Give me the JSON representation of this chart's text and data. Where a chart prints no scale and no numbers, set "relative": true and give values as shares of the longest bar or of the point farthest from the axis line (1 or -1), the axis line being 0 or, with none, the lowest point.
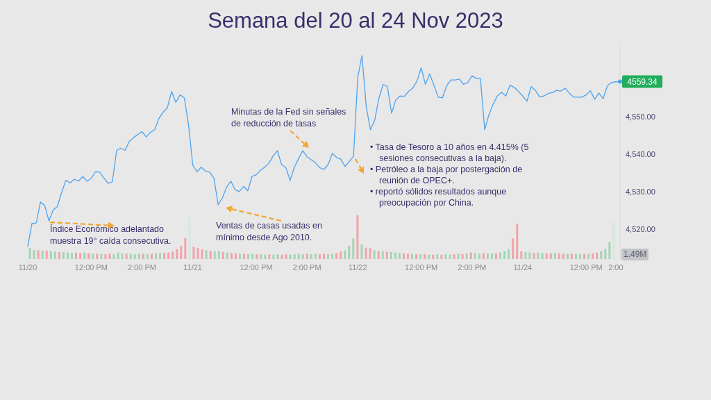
{
  "chart_data": [
    {
      "type": "line",
      "title": "Semana del 20 al 24 Nov 2023",
      "categories": [
        "11/20",
        null,
        null,
        null,
        null,
        null,
        null,
        null,
        null,
        null,
        null,
        null,
        null,
        null,
        null,
        "12:00 PM",
        null,
        null,
        null,
        null,
        null,
        null,
        null,
        null,
        null,
        null,
        null,
        "2:00 PM",
        null,
        null,
        null,
        null,
        null,
        null,
        null,
        null,
        null,
        null,
        null,
        "11/21",
        null,
        null,
        null,
        null,
        null,
        null,
        null,
        null,
        null,
        null,
        null,
        null,
        null,
        null,
        "12:00 PM",
        null,
        null,
        null,
        null,
        null,
        null,
        null,
        null,
        null,
        null,
        null,
        "2:00 PM",
        null,
        null,
        null,
        null,
        null,
        null,
        null,
        null,
        null,
        null,
        null,
        "11/22",
        null,
        null,
        null,
        null,
        null,
        null,
        null,
        null,
        null,
        null,
        null,
        null,
        null,
        null,
        "12:00 PM",
        null,
        null,
        null,
        null,
        null,
        null,
        null,
        null,
        null,
        null,
        null,
        "2:00 PM",
        null,
        null,
        null,
        null,
        null,
        null,
        null,
        null,
        null,
        null,
        null,
        "11/24",
        null,
        null,
        null,
        null,
        null,
        null,
        null,
        null,
        null,
        null,
        null,
        null,
        null,
        null,
        "12:00 PM",
        null,
        null,
        null,
        null,
        null,
        null,
        "2:00",
        null
      ],
      "series": [
        {
          "color": "#4fa3ef",
          "values": [
            4515.4,
            4521.5,
            4521.6,
            4527.2,
            4526.3,
            4522.2,
            4525.1,
            4526.0,
            4529.8,
            4533.0,
            4532.3,
            4533.3,
            4532.8,
            4534.0,
            4532.8,
            4533.5,
            4535.3,
            4535.2,
            4533.6,
            4532.2,
            4532.6,
            4541.0,
            4541.6,
            4541.0,
            4543.4,
            4544.4,
            4545.2,
            4546.0,
            4544.6,
            4545.8,
            4546.5,
            4549.5,
            4551.2,
            4552.4,
            4556.7,
            4553.8,
            4555.8,
            4555.0,
            4547.8,
            4537.1,
            4535.3,
            4536.5,
            4535.5,
            4535.2,
            4533.6,
            4526.5,
            4528.3,
            4531.2,
            4532.8,
            4530.5,
            4530.0,
            4531.4,
            4530.2,
            4534.0,
            4534.5,
            4535.7,
            4536.5,
            4537.6,
            4539.5,
            4540.9,
            4537.2,
            4536.4,
            4533.0,
            4536.4,
            4538.8,
            4540.9,
            4539.3,
            4538.5,
            4537.7,
            4536.4,
            4535.9,
            4537.2,
            4540.2,
            4539.1,
            4538.6,
            4536.7,
            4538.0,
            4539.4,
            4560.5,
            4566.3,
            4552.7,
            4546.5,
            4549.0,
            4554.9,
            4558.6,
            4558.0,
            4550.9,
            4554.5,
            4555.5,
            4555.4,
            4556.7,
            4557.6,
            4559.5,
            4563.0,
            4558.6,
            4561.4,
            4558.4,
            4555.2,
            4555.0,
            4558.2,
            4559.8,
            4559.8,
            4560.0,
            4558.6,
            4559.1,
            4560.9,
            4560.2,
            4560.2,
            4546.5,
            4550.5,
            4553.3,
            4555.5,
            4556.5,
            4555.5,
            4558.4,
            4557.8,
            4556.7,
            4555.5,
            4554.1,
            4558.0,
            4557.0,
            4555.3,
            4555.5,
            4556.2,
            4556.4,
            4557.0,
            4556.8,
            4557.6,
            4556.3,
            4555.2,
            4555.2,
            4555.2,
            4555.8,
            4556.9,
            4554.6,
            4556.3,
            4554.8,
            4558.2,
            4559.1,
            4559.3,
            4559.34
          ],
          "value_labels": [
            null,
            null,
            null,
            null,
            null,
            null,
            null,
            null,
            null,
            null,
            null,
            null,
            null,
            null,
            null,
            null,
            null,
            null,
            null,
            null,
            null,
            null,
            null,
            null,
            null,
            null,
            null,
            null,
            null,
            null,
            null,
            null,
            null,
            null,
            null,
            null,
            null,
            null,
            null,
            null,
            null,
            null,
            null,
            null,
            null,
            null,
            null,
            null,
            null,
            null,
            null,
            null,
            null,
            null,
            null,
            null,
            null,
            null,
            null,
            null,
            null,
            null,
            null,
            null,
            null,
            null,
            null,
            null,
            null,
            null,
            null,
            null,
            null,
            null,
            null,
            null,
            null,
            null,
            null,
            null,
            null,
            null,
            null,
            null,
            null,
            null,
            null,
            null,
            null,
            null,
            null,
            null,
            null,
            null,
            null,
            null,
            null,
            null,
            null,
            null,
            null,
            null,
            null,
            null,
            null,
            null,
            null,
            null,
            null,
            null,
            null,
            null,
            null,
            null,
            null,
            null,
            null,
            null,
            null,
            null,
            null,
            null,
            null,
            null,
            null,
            null,
            null,
            null,
            null,
            null,
            null,
            null,
            null,
            null,
            null,
            null,
            null,
            null,
            null,
            null,
            "4559.34"
          ]
        }
      ],
      "ylim": [
        4512,
        4570
      ],
      "yticks": [
        {
          "value": 4520,
          "label": "4,520.00"
        },
        {
          "value": 4530,
          "label": "4,530.00"
        },
        {
          "value": 4540,
          "label": "4,540.00"
        },
        {
          "value": 4550,
          "label": "4,550.00"
        }
      ],
      "annotations": [
        "Índice Económico adelantado muestra 19° caída consecutiva.",
        "Ventas de casas usadas en mínimo desde Ago 2010.",
        "Minutas de la Fed sin señales de reducción de tasas",
        "• Tasa de Tesoro a 10 años en 4.415% (5 sesiones consecutivas a la baja).",
        "• Petróleo a la baja por postergación de reunión de OPEC+.",
        "• reportó sólidos resultados aunque preocupación por China."
      ]
    },
    {
      "type": "bar",
      "relative": true,
      "tick_labels": false,
      "categories": [
        null,
        null,
        null,
        null,
        null,
        null,
        null,
        null,
        null,
        null,
        null,
        null,
        null,
        null,
        null,
        null,
        null,
        null,
        null,
        null,
        null,
        null,
        null,
        null,
        null,
        null,
        null,
        null,
        null,
        null,
        null,
        null,
        null,
        null,
        null,
        null,
        null,
        null,
        null,
        null,
        null,
        null,
        null,
        null,
        null,
        null,
        null,
        null,
        null,
        null,
        null,
        null,
        null,
        null,
        null,
        null,
        null,
        null,
        null,
        null,
        null,
        null,
        null,
        null,
        null,
        null,
        null,
        null,
        null,
        null,
        null,
        null,
        null,
        null,
        null,
        null,
        null,
        null,
        null,
        null,
        null,
        null,
        null,
        null,
        null,
        null,
        null,
        null,
        null,
        null,
        null,
        null,
        null,
        null,
        null,
        null,
        null,
        null,
        null,
        null,
        null,
        null,
        null,
        null,
        null,
        null,
        null,
        null,
        null,
        null,
        null,
        null,
        null,
        null,
        null,
        null,
        null,
        null,
        null,
        null,
        null,
        null,
        null,
        null,
        null,
        null,
        null,
        null,
        null,
        null,
        null,
        null,
        null,
        null,
        null,
        null,
        null,
        null,
        null,
        null,
        null
      ],
      "values": [
        0.25,
        0.21,
        0.2,
        0.19,
        0.19,
        0.18,
        0.17,
        0.16,
        0.16,
        0.15,
        0.14,
        0.15,
        0.14,
        0.15,
        0.13,
        0.12,
        0.12,
        0.11,
        0.11,
        0.12,
        0.11,
        0.15,
        0.13,
        0.12,
        0.12,
        0.11,
        0.12,
        0.12,
        0.11,
        0.12,
        0.13,
        0.13,
        0.14,
        0.15,
        0.17,
        0.22,
        0.3,
        0.48,
        0.95,
        0.28,
        0.25,
        0.22,
        0.2,
        0.19,
        0.18,
        0.18,
        0.16,
        0.15,
        0.14,
        0.13,
        0.12,
        0.12,
        0.11,
        0.12,
        0.11,
        0.11,
        0.1,
        0.11,
        0.1,
        0.11,
        0.1,
        0.11,
        0.1,
        0.11,
        0.12,
        0.11,
        0.12,
        0.11,
        0.12,
        0.11,
        0.12,
        0.11,
        0.12,
        0.14,
        0.17,
        0.2,
        0.3,
        0.47,
        1,
        0.34,
        0.26,
        0.25,
        0.2,
        0.19,
        0.18,
        0.17,
        0.16,
        0.15,
        0.14,
        0.13,
        0.12,
        0.12,
        0.11,
        0.11,
        0.11,
        0.1,
        0.1,
        0.11,
        0.1,
        0.11,
        0.1,
        0.11,
        0.12,
        0.11,
        0.12,
        0.15,
        0.13,
        0.12,
        0.14,
        0.13,
        0.12,
        0.13,
        0.15,
        0.18,
        0.23,
        0.47,
        0.8,
        0.18,
        0.16,
        0.15,
        0.14,
        0.15,
        0.14,
        0.13,
        0.13,
        0.14,
        0.13,
        0.12,
        0.12,
        0.12,
        0.12,
        0.11,
        0.12,
        0.12,
        0.13,
        0.15,
        0.18,
        0.23,
        0.39,
        0.85,
        null
      ],
      "colors": [
        "#a3d4b6",
        "#a3d4b6",
        "#f2a3a8",
        "#a3d4b6",
        "#f2a3a8",
        "#a3d4b6",
        "#a3d4b6",
        "#f2a3a8",
        "#a3d4b6",
        "#a3d4b6",
        "#a3d4b6",
        "#f2a3a8",
        "#f2a3a8",
        "#a3d4b6",
        "#f2a3a8",
        "#a3d4b6",
        "#f2a3a8",
        "#a3d4b6",
        "#f2a3a8",
        "#f2a3a8",
        "#a3d4b6",
        "#a3d4b6",
        "#a3d4b6",
        "#f2a3a8",
        "#a3d4b6",
        "#a3d4b6",
        "#a3d4b6",
        "#f2a3a8",
        "#a3d4b6",
        "#f2a3a8",
        "#a3d4b6",
        "#a3d4b6",
        "#f2a3a8",
        "#f2a3a8",
        "#f2a3a8",
        "#f2a3a8",
        "#f2a3a8",
        "#f2a3a8",
        "#d3e9dc",
        "#f2a3a8",
        "#f2a3a8",
        "#f2a3a8",
        "#a3d4b6",
        "#f2a3a8",
        "#a3d4b6",
        "#a3d4b6",
        "#f2a3a8",
        "#a3d4b6",
        "#f2a3a8",
        "#f2a3a8",
        "#a3d4b6",
        "#f2a3a8",
        "#a3d4b6",
        "#a3d4b6",
        "#f2a3a8",
        "#a3d4b6",
        "#a3d4b6",
        "#f2a3a8",
        "#a3d4b6",
        "#a3d4b6",
        "#f2a3a8",
        "#f2a3a8",
        "#a3d4b6",
        "#a3d4b6",
        "#a3d4b6",
        "#a3d4b6",
        "#f2a3a8",
        "#a3d4b6",
        "#a3d4b6",
        "#f2a3a8",
        "#f2a3a8",
        "#a3d4b6",
        "#a3d4b6",
        "#f2a3a8",
        "#f2a3a8",
        "#a3d4b6",
        "#a3d4b6",
        "#a3d4b6",
        "#f2a3a8",
        "#a3d4b6",
        "#f2a3a8",
        "#f2a3a8",
        "#a3d4b6",
        "#f2a3a8",
        "#a3d4b6",
        "#f2a3a8",
        "#a3d4b6",
        "#a3d4b6",
        "#a3d4b6",
        "#f2a3a8",
        "#f2a3a8",
        "#a3d4b6",
        "#f2a3a8",
        "#a3d4b6",
        "#f2a3a8",
        "#a3d4b6",
        "#f2a3a8",
        "#a3d4b6",
        "#f2a3a8",
        "#a3d4b6",
        "#a3d4b6",
        "#f2a3a8",
        "#a3d4b6",
        "#f2a3a8",
        "#a3d4b6",
        "#f2a3a8",
        "#a3d4b6",
        "#a3d4b6",
        "#f2a3a8",
        "#a3d4b6",
        "#a3d4b6",
        "#f2a3a8",
        "#a3d4b6",
        "#a3d4b6",
        "#a3d4b6",
        "#f2a3a8",
        "#f2a3a8",
        "#f2a3a8",
        "#a3d4b6",
        "#a3d4b6",
        "#f2a3a8",
        "#a3d4b6",
        "#a3d4b6",
        "#f2a3a8",
        "#f2a3a8",
        "#a3d4b6",
        "#f2a3a8",
        "#f2a3a8",
        "#a3d4b6",
        "#f2a3a8",
        "#a3d4b6",
        "#a3d4b6",
        "#f2a3a8",
        "#a3d4b6",
        "#f2a3a8",
        "#f2a3a8",
        "#a3d4b6",
        "#a3d4b6",
        "#a3d4b6",
        "#d3e9dc",
        "#a3d4b6"
      ],
      "annotations": [
        "1.49M"
      ]
    }
  ]
}
